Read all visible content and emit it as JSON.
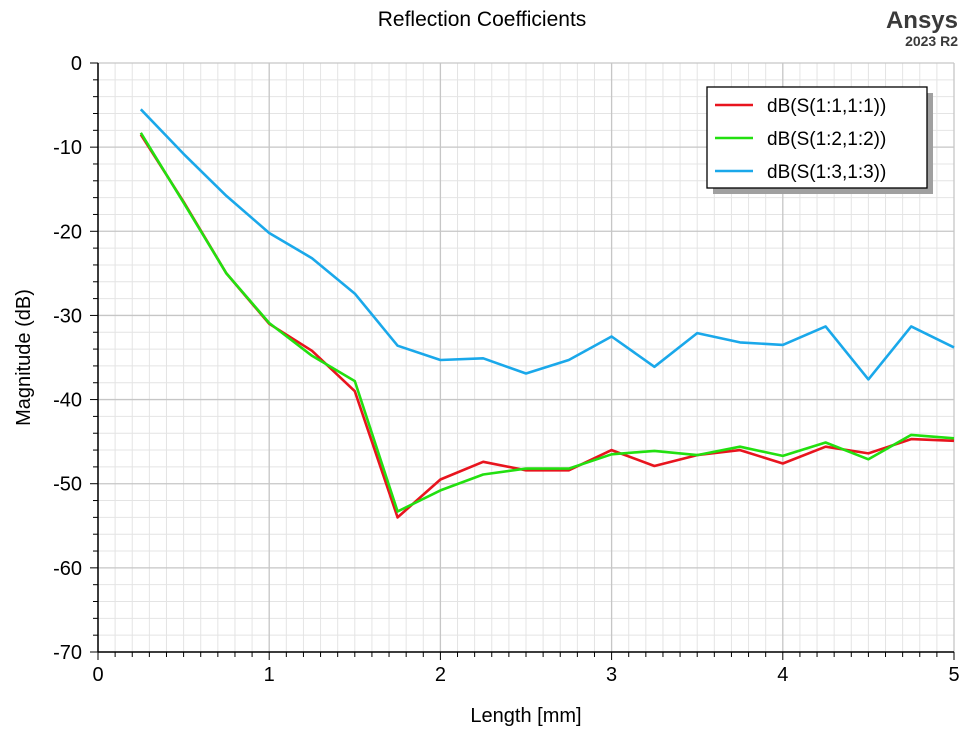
{
  "brand": {
    "name": "Ansys",
    "version": "2023 R2"
  },
  "chart_data": {
    "type": "line",
    "title": "Reflection Coefficients",
    "xlabel": "Length [mm]",
    "ylabel": "Magnitude (dB)",
    "xlim": [
      0,
      5
    ],
    "ylim": [
      -70,
      0
    ],
    "xticks": [
      0,
      1,
      2,
      3,
      4,
      5
    ],
    "yticks": [
      0,
      -10,
      -20,
      -30,
      -40,
      -50,
      -60,
      -70
    ],
    "grid": true,
    "legend_position": "top-right",
    "x": [
      0.25,
      0.5,
      0.75,
      1.0,
      1.25,
      1.5,
      1.75,
      2.0,
      2.25,
      2.5,
      2.75,
      3.0,
      3.25,
      3.5,
      3.75,
      4.0,
      4.25,
      4.5,
      4.75,
      5.0
    ],
    "series": [
      {
        "name": "dB(S(1:1,1:1))",
        "color": "#e8141e",
        "values": [
          -8.5,
          -16.5,
          -25.0,
          -31.0,
          -34.2,
          -39.0,
          -54.0,
          -49.5,
          -47.4,
          -48.4,
          -48.4,
          -46.0,
          -47.9,
          -46.6,
          -46.0,
          -47.6,
          -45.6,
          -46.4,
          -44.7,
          -44.9
        ]
      },
      {
        "name": "dB(S(1:2,1:2))",
        "color": "#22e010",
        "values": [
          -8.3,
          -16.6,
          -25.0,
          -30.9,
          -34.8,
          -37.8,
          -53.3,
          -50.8,
          -48.9,
          -48.2,
          -48.2,
          -46.5,
          -46.1,
          -46.6,
          -45.6,
          -46.7,
          -45.1,
          -47.1,
          -44.2,
          -44.6
        ]
      },
      {
        "name": "dB(S(1:3,1:3))",
        "color": "#1aa8ea",
        "values": [
          -5.5,
          -10.8,
          -15.8,
          -20.2,
          -23.2,
          -27.4,
          -33.6,
          -35.3,
          -35.1,
          -36.9,
          -35.3,
          -32.5,
          -36.1,
          -32.1,
          -33.2,
          -33.5,
          -31.3,
          -37.6,
          -31.3,
          -33.8
        ]
      }
    ]
  }
}
